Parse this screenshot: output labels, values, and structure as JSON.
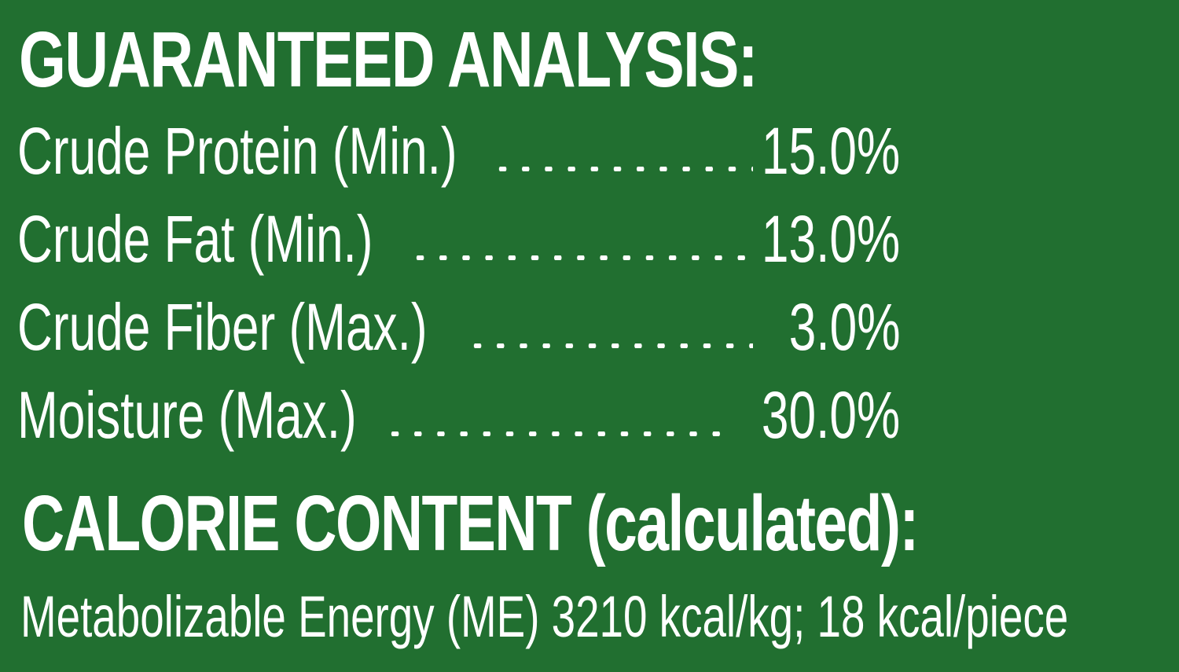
{
  "colors": {
    "background": "#216f30",
    "text": "#ffffff"
  },
  "guaranteed_analysis": {
    "heading": "GUARANTEED ANALYSIS:",
    "rows": [
      {
        "label": "Crude Protein (Min.)",
        "value": "15.0%"
      },
      {
        "label": "Crude Fat (Min.)",
        "value": "13.0%"
      },
      {
        "label": "Crude Fiber (Max.)",
        "value": "3.0%"
      },
      {
        "label": "Moisture (Max.)",
        "value": "30.0%"
      }
    ]
  },
  "calorie_content": {
    "heading": "CALORIE CONTENT (calculated):",
    "statement": "Metabolizable Energy (ME) 3210 kcal/kg; 18 kcal/piece"
  }
}
